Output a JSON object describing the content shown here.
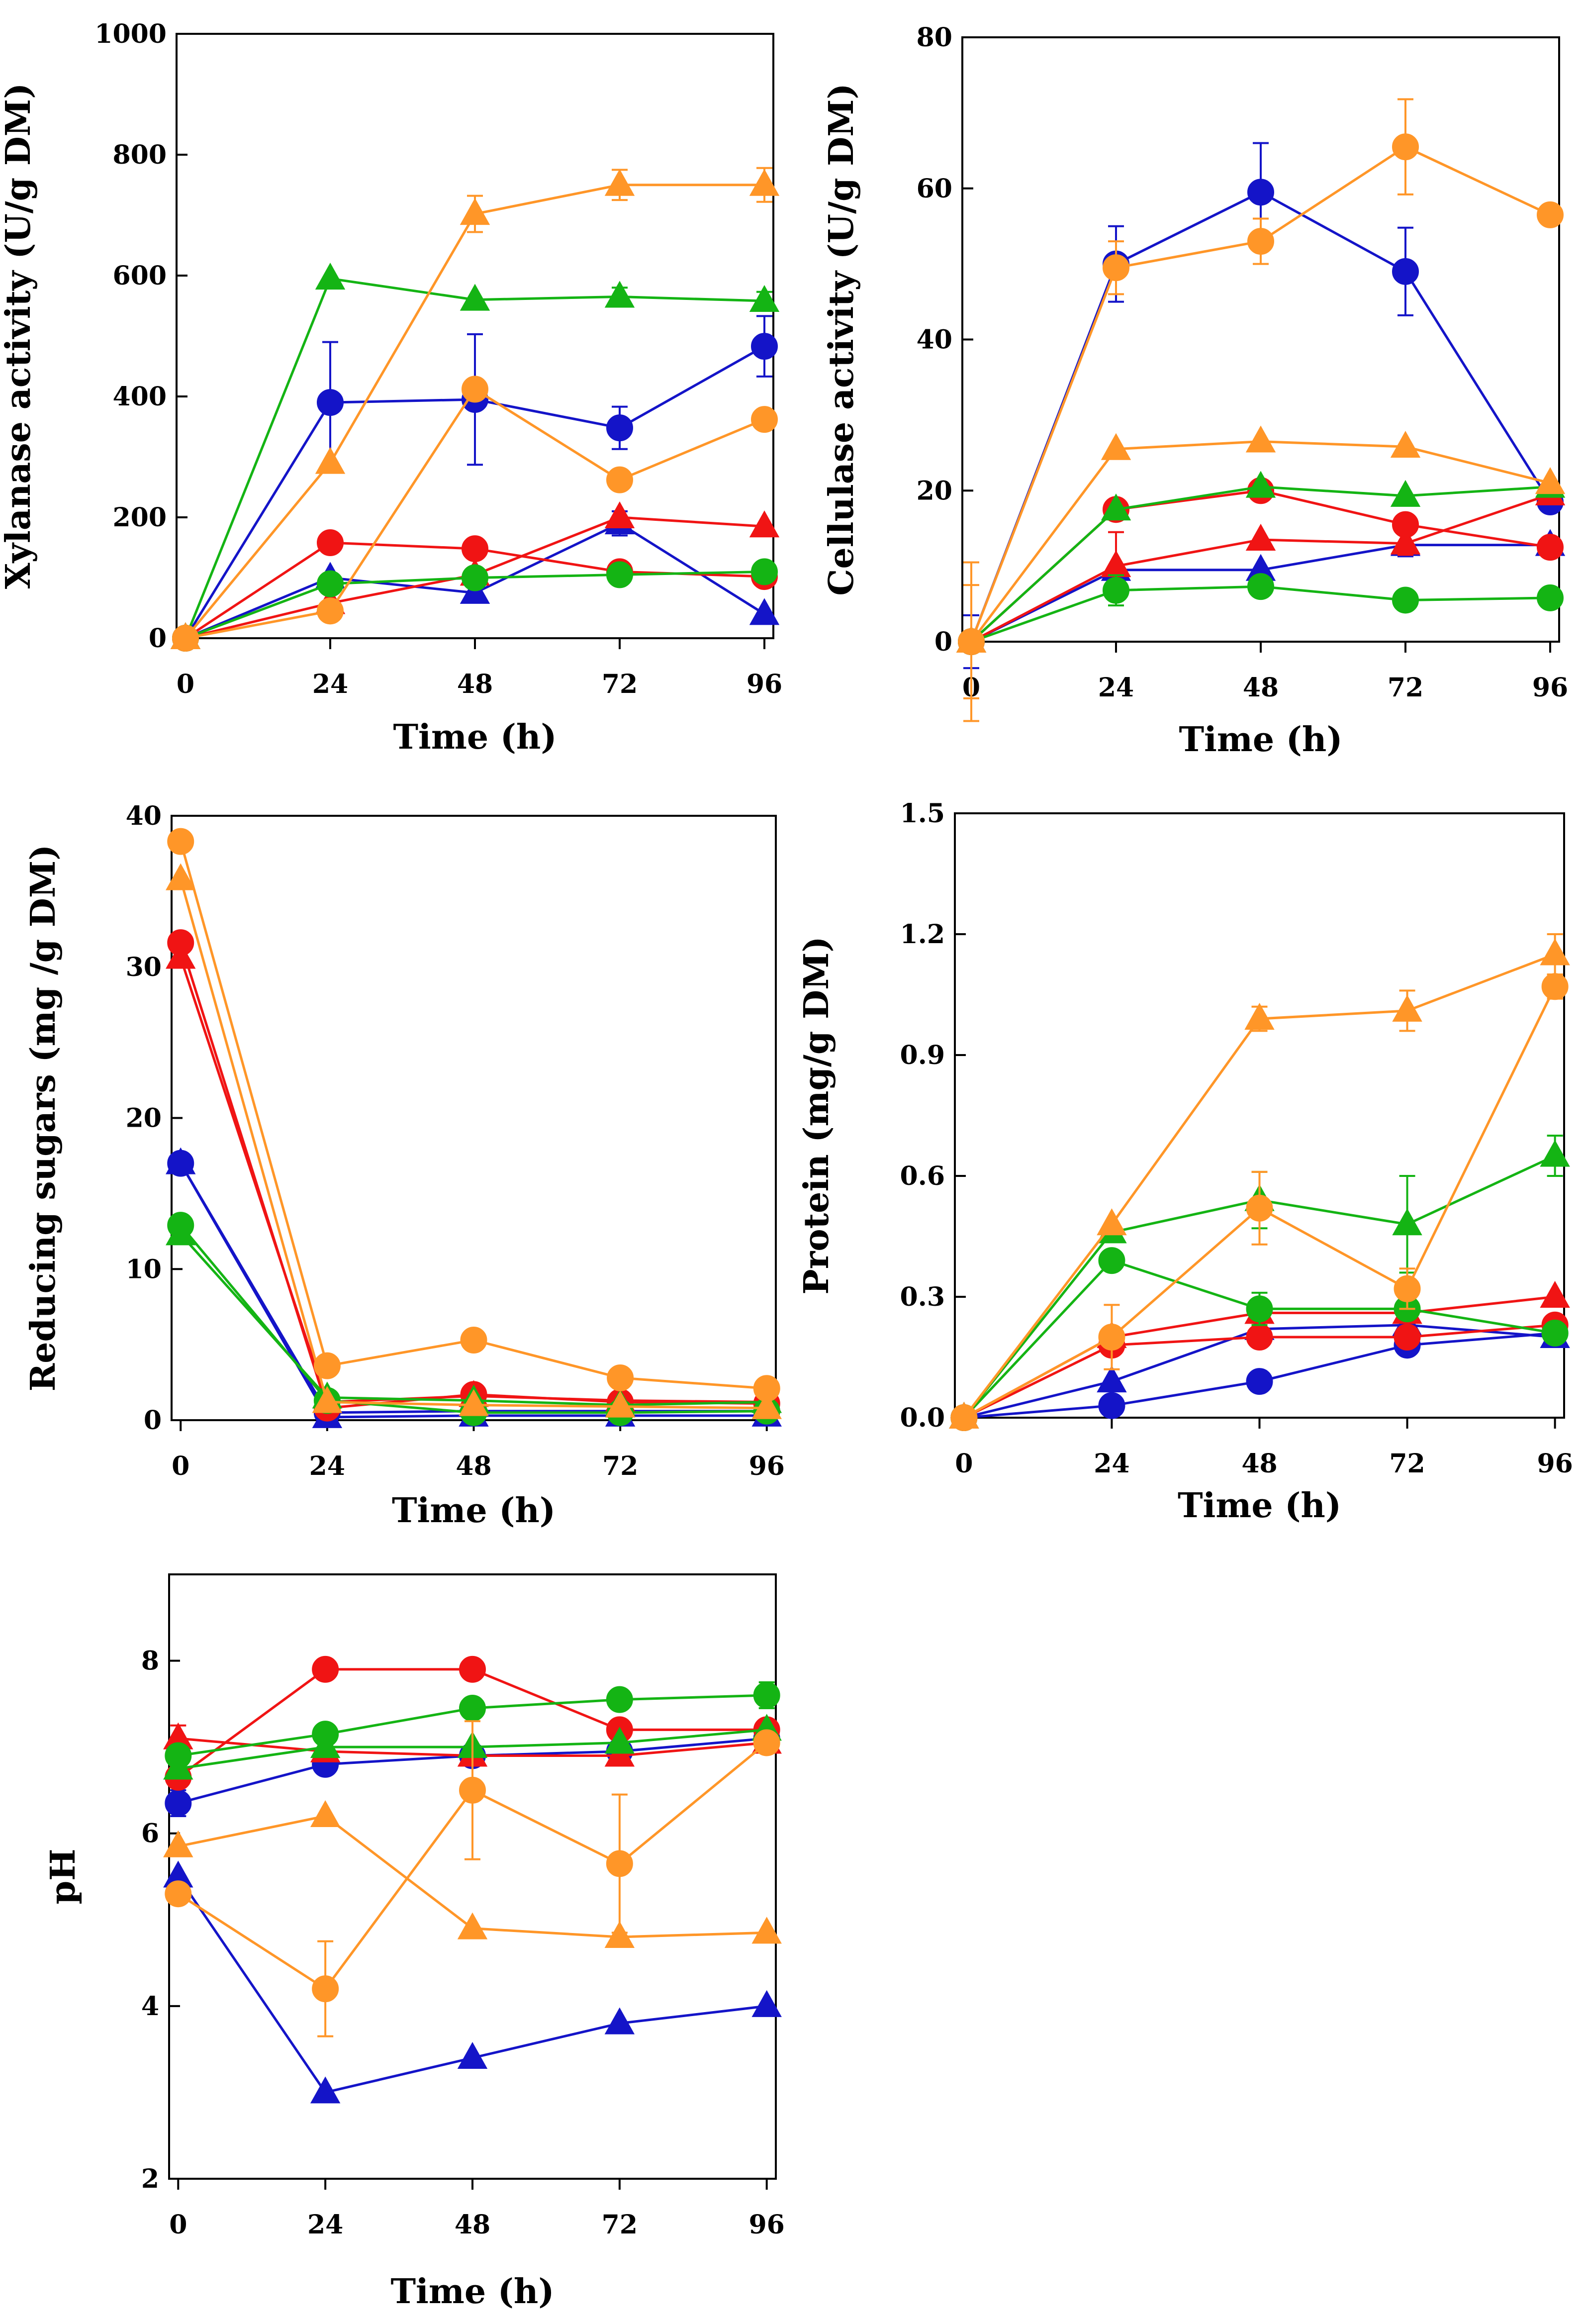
{
  "colors": {
    "blue": "#1414c8",
    "red": "#f01414",
    "green": "#14b414",
    "orange": "#ff9628",
    "axis": "#000000"
  },
  "chart_data": [
    {
      "id": "xylanase",
      "type": "line",
      "ylabel": "Xylanase activity (U/g DM)",
      "xlabel": "Time (h)",
      "x": [
        0,
        24,
        48,
        72,
        96
      ],
      "xticks": [
        "0",
        "24",
        "48",
        "72",
        "96"
      ],
      "xlim": [
        0,
        96
      ],
      "ylim": [
        0,
        1000
      ],
      "yticks": [
        0,
        200,
        400,
        600,
        800,
        1000
      ],
      "series": [
        {
          "name": "blue circle",
          "color": "blue",
          "marker": "circle",
          "values": [
            0,
            390,
            395,
            348,
            483
          ],
          "err": [
            0,
            100,
            108,
            35,
            50
          ]
        },
        {
          "name": "blue triangle",
          "color": "blue",
          "marker": "triangle",
          "values": [
            0,
            100,
            75,
            190,
            40
          ],
          "err": [
            0,
            0,
            0,
            20,
            0
          ]
        },
        {
          "name": "red circle",
          "color": "red",
          "marker": "circle",
          "values": [
            0,
            158,
            148,
            110,
            102
          ],
          "err": [
            0,
            0,
            0,
            0,
            0
          ]
        },
        {
          "name": "red triangle",
          "color": "red",
          "marker": "triangle",
          "values": [
            0,
            58,
            105,
            200,
            185
          ],
          "err": [
            0,
            0,
            0,
            0,
            0
          ]
        },
        {
          "name": "green circle",
          "color": "green",
          "marker": "circle",
          "values": [
            0,
            90,
            100,
            105,
            110
          ],
          "err": [
            0,
            0,
            0,
            0,
            0
          ]
        },
        {
          "name": "green triangle",
          "color": "green",
          "marker": "triangle",
          "values": [
            0,
            595,
            560,
            565,
            558
          ],
          "err": [
            0,
            0,
            0,
            15,
            15
          ]
        },
        {
          "name": "orange circle",
          "color": "orange",
          "marker": "circle",
          "values": [
            0,
            45,
            412,
            262,
            362
          ],
          "err": [
            0,
            0,
            0,
            0,
            0
          ]
        },
        {
          "name": "orange triangle",
          "color": "orange",
          "marker": "triangle",
          "values": [
            0,
            290,
            702,
            750,
            750
          ],
          "err": [
            0,
            0,
            30,
            25,
            28
          ]
        }
      ]
    },
    {
      "id": "cellulase",
      "type": "line",
      "ylabel": "Cellulase activity (U/g DM)",
      "xlabel": "Time (h)",
      "x": [
        0,
        24,
        48,
        72,
        96
      ],
      "xticks": [
        "0",
        "24",
        "48",
        "72",
        "96"
      ],
      "xlim": [
        0,
        96
      ],
      "ylim": [
        0,
        80
      ],
      "yticks": [
        0,
        20,
        40,
        60,
        80
      ],
      "series": [
        {
          "name": "blue circle",
          "color": "blue",
          "marker": "circle",
          "values": [
            0,
            50,
            59.5,
            49,
            18.5
          ],
          "err": [
            0,
            5,
            6.5,
            5.8,
            0
          ]
        },
        {
          "name": "blue triangle",
          "color": "blue",
          "marker": "triangle",
          "values": [
            0,
            9.5,
            9.5,
            12.8,
            12.8
          ],
          "err": [
            3.5,
            0,
            0,
            1.5,
            0
          ]
        },
        {
          "name": "red circle",
          "color": "red",
          "marker": "circle",
          "values": [
            0,
            17.5,
            20,
            15.5,
            12.5
          ],
          "err": [
            0,
            1,
            0,
            1,
            0
          ]
        },
        {
          "name": "red triangle",
          "color": "red",
          "marker": "triangle",
          "values": [
            0,
            10,
            13.5,
            13,
            19.5
          ],
          "err": [
            0,
            4.5,
            0,
            1.5,
            0
          ]
        },
        {
          "name": "green circle",
          "color": "green",
          "marker": "circle",
          "values": [
            0,
            6.8,
            7.3,
            5.5,
            5.8
          ],
          "err": [
            0,
            2,
            0,
            0,
            0
          ]
        },
        {
          "name": "green triangle",
          "color": "green",
          "marker": "triangle",
          "values": [
            0,
            17.5,
            20.5,
            19.3,
            20.5
          ],
          "err": [
            0,
            0,
            0,
            0,
            0
          ]
        },
        {
          "name": "orange circle",
          "color": "orange",
          "marker": "circle",
          "values": [
            0,
            49.5,
            53,
            65.5,
            56.5
          ],
          "err": [
            10.5,
            3.5,
            3,
            6.3,
            0
          ]
        },
        {
          "name": "orange triangle",
          "color": "orange",
          "marker": "triangle",
          "values": [
            0,
            25.5,
            26.5,
            25.8,
            21
          ],
          "err": [
            7.5,
            0,
            0,
            0,
            0
          ]
        }
      ]
    },
    {
      "id": "reducing-sugars",
      "type": "line",
      "ylabel": "Reducing sugars (mg /g DM)",
      "xlabel": "Time (h)",
      "x": [
        0,
        24,
        48,
        72,
        96
      ],
      "xticks": [
        "0",
        "24",
        "48",
        "72",
        "96"
      ],
      "xlim": [
        0,
        96
      ],
      "ylim": [
        0,
        40
      ],
      "yticks": [
        0,
        10,
        20,
        30,
        40
      ],
      "series": [
        {
          "name": "blue circle",
          "color": "blue",
          "marker": "circle",
          "values": [
            17,
            0.5,
            0.6,
            0.6,
            0.6
          ],
          "err": [
            0,
            0,
            0,
            0,
            0
          ]
        },
        {
          "name": "blue triangle",
          "color": "blue",
          "marker": "triangle",
          "values": [
            17,
            0.2,
            0.3,
            0.3,
            0.3
          ],
          "err": [
            0,
            0,
            0,
            0,
            0
          ]
        },
        {
          "name": "red circle",
          "color": "red",
          "marker": "circle",
          "values": [
            31.6,
            0.8,
            1.7,
            1.2,
            1.1
          ],
          "err": [
            0,
            0,
            0,
            0,
            0
          ]
        },
        {
          "name": "red triangle",
          "color": "red",
          "marker": "triangle",
          "values": [
            30.6,
            1.2,
            1.6,
            1.3,
            1.2
          ],
          "err": [
            0,
            0,
            0,
            0,
            0
          ]
        },
        {
          "name": "green circle",
          "color": "green",
          "marker": "circle",
          "values": [
            12.9,
            1.3,
            0.5,
            0.5,
            0.6
          ],
          "err": [
            0,
            0,
            0,
            0,
            0
          ]
        },
        {
          "name": "green triangle",
          "color": "green",
          "marker": "triangle",
          "values": [
            12.3,
            1.5,
            1.3,
            1.0,
            1.2
          ],
          "err": [
            0,
            0,
            0,
            0,
            0
          ]
        },
        {
          "name": "orange circle",
          "color": "orange",
          "marker": "circle",
          "values": [
            38.3,
            3.6,
            5.3,
            2.8,
            2.1
          ],
          "err": [
            0,
            0,
            0,
            0,
            0
          ]
        },
        {
          "name": "orange triangle",
          "color": "orange",
          "marker": "triangle",
          "values": [
            35.8,
            1.2,
            1.0,
            0.9,
            0.8
          ],
          "err": [
            0,
            0,
            0,
            0,
            0
          ]
        }
      ]
    },
    {
      "id": "protein",
      "type": "line",
      "ylabel": "Protein (mg/g DM)",
      "xlabel": "Time (h)",
      "x": [
        0,
        24,
        48,
        72,
        96
      ],
      "xticks": [
        "0",
        "24",
        "48",
        "72",
        "96"
      ],
      "xlim": [
        0,
        96
      ],
      "ylim": [
        0,
        1.5
      ],
      "yticks": [
        "0.0",
        "0.3",
        "0.6",
        "0.9",
        "1.2",
        "1.5"
      ],
      "series": [
        {
          "name": "blue circle",
          "color": "blue",
          "marker": "circle",
          "values": [
            0,
            0.03,
            0.09,
            0.18,
            0.21
          ],
          "err": [
            0,
            0,
            0,
            0,
            0
          ]
        },
        {
          "name": "blue triangle",
          "color": "blue",
          "marker": "triangle",
          "values": [
            0,
            0.09,
            0.22,
            0.23,
            0.2
          ],
          "err": [
            0,
            0,
            0,
            0,
            0
          ]
        },
        {
          "name": "red circle",
          "color": "red",
          "marker": "circle",
          "values": [
            0,
            0.18,
            0.2,
            0.2,
            0.23
          ],
          "err": [
            0,
            0,
            0,
            0,
            0
          ]
        },
        {
          "name": "red triangle",
          "color": "red",
          "marker": "triangle",
          "values": [
            0,
            0.2,
            0.26,
            0.26,
            0.3
          ],
          "err": [
            0,
            0,
            0,
            0,
            0
          ]
        },
        {
          "name": "green circle",
          "color": "green",
          "marker": "circle",
          "values": [
            0,
            0.39,
            0.27,
            0.27,
            0.21
          ],
          "err": [
            0,
            0,
            0.04,
            0,
            0
          ]
        },
        {
          "name": "green triangle",
          "color": "green",
          "marker": "triangle",
          "values": [
            0,
            0.46,
            0.54,
            0.48,
            0.65
          ],
          "err": [
            0,
            0,
            0.07,
            0.12,
            0.05
          ]
        },
        {
          "name": "orange circle",
          "color": "orange",
          "marker": "circle",
          "values": [
            0,
            0.2,
            0.52,
            0.32,
            1.07
          ],
          "err": [
            0,
            0.08,
            0.09,
            0.05,
            0.03
          ]
        },
        {
          "name": "orange triangle",
          "color": "orange",
          "marker": "triangle",
          "values": [
            0,
            0.48,
            0.99,
            1.01,
            1.15
          ],
          "err": [
            0,
            0,
            0.03,
            0.05,
            0.05
          ]
        }
      ]
    },
    {
      "id": "ph",
      "type": "line",
      "ylabel": "pH",
      "xlabel": "Time (h)",
      "x": [
        0,
        24,
        48,
        72,
        96
      ],
      "xticks": [
        "0",
        "24",
        "48",
        "72",
        "96"
      ],
      "xlim": [
        0,
        96
      ],
      "ylim": [
        2,
        9
      ],
      "yticks": [
        2,
        4,
        6,
        8
      ],
      "series": [
        {
          "name": "blue circle",
          "color": "blue",
          "marker": "circle",
          "values": [
            6.35,
            6.8,
            6.9,
            6.95,
            7.1
          ],
          "err": [
            0.15,
            0,
            0,
            0,
            0
          ]
        },
        {
          "name": "blue triangle",
          "color": "blue",
          "marker": "triangle",
          "values": [
            5.5,
            3.0,
            3.4,
            3.8,
            4.0
          ],
          "err": [
            0,
            0,
            0,
            0,
            0
          ]
        },
        {
          "name": "red circle",
          "color": "red",
          "marker": "circle",
          "values": [
            6.65,
            7.9,
            7.9,
            7.2,
            7.2
          ],
          "err": [
            0,
            0,
            0,
            0,
            0
          ]
        },
        {
          "name": "red triangle",
          "color": "red",
          "marker": "triangle",
          "values": [
            7.1,
            6.95,
            6.9,
            6.9,
            7.05
          ],
          "err": [
            0.15,
            0,
            0,
            0,
            0
          ]
        },
        {
          "name": "green circle",
          "color": "green",
          "marker": "circle",
          "values": [
            6.9,
            7.15,
            7.45,
            7.55,
            7.6
          ],
          "err": [
            0,
            0,
            0,
            0.1,
            0.15
          ]
        },
        {
          "name": "green triangle",
          "color": "green",
          "marker": "triangle",
          "values": [
            6.75,
            7.0,
            7.0,
            7.05,
            7.2
          ],
          "err": [
            0,
            0,
            0,
            0,
            0
          ]
        },
        {
          "name": "orange circle",
          "color": "orange",
          "marker": "circle",
          "values": [
            5.3,
            4.2,
            6.5,
            5.65,
            7.05
          ],
          "err": [
            0,
            0.55,
            0.8,
            0.8,
            0
          ]
        },
        {
          "name": "orange triangle",
          "color": "orange",
          "marker": "triangle",
          "values": [
            5.85,
            6.2,
            4.9,
            4.8,
            4.85
          ],
          "err": [
            0,
            0,
            0,
            0,
            0
          ]
        }
      ]
    }
  ]
}
